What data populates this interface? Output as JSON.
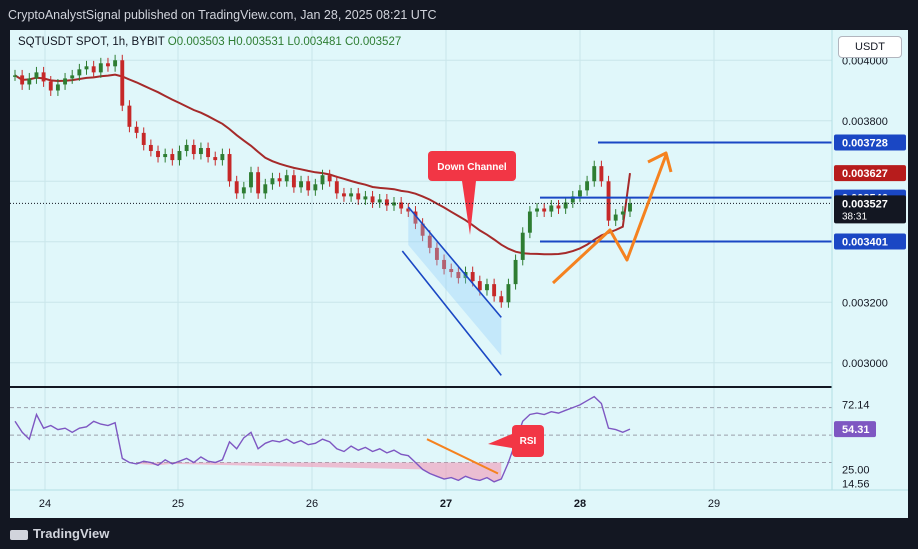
{
  "header": {
    "text": "CryptoAnalystSignal published on TradingView.com, Jan 28, 2025 08:21 UTC"
  },
  "legend": {
    "symbol": "SQTUSDT SPOT, 1h, BYBIT",
    "o_label": "O",
    "o": "0.003503",
    "h_label": "H",
    "h": "0.003531",
    "l_label": "L",
    "l": "0.003481",
    "c_label": "C",
    "c": "0.003527"
  },
  "currency_button": "USDT",
  "footer": {
    "brand": "TradingView"
  },
  "colors": {
    "up": "#2e7d32",
    "down": "#c62828",
    "ma": "#a52a2a",
    "levels": "#1a47c4",
    "arrow": "#f5821f",
    "rsi": "#7e57c2",
    "bg": "#e0f7fa"
  },
  "annotations": {
    "down_channel": "Down Channel",
    "rsi_note": "RSI"
  },
  "price_tags": [
    {
      "value": "0.003728",
      "color": "#1a47c4"
    },
    {
      "value": "0.003627",
      "color": "#b71c1c"
    },
    {
      "value": "0.003546",
      "color": "#1a47c4"
    },
    {
      "value": "0.003527",
      "color": "#131722",
      "countdown": "38:31"
    },
    {
      "value": "0.003401",
      "color": "#1a47c4"
    }
  ],
  "rsi_tags": [
    {
      "value": "54.31",
      "color": "#7e57c2"
    }
  ],
  "chart_data": [
    {
      "type": "candlestick",
      "title": "SQTUSDT SPOT, 1h, BYBIT",
      "x_tick_labels": [
        "24",
        "25",
        "26",
        "27",
        "28",
        "29"
      ],
      "y_tick_labels": [
        "0.004000",
        "0.003800",
        "0.003200",
        "0.003000"
      ],
      "ylim": [
        0.00292,
        0.0041
      ],
      "grid": true,
      "legend_position": "top-left",
      "key_levels": [
        0.003728,
        0.003546,
        0.003401
      ],
      "last_price": 0.003527,
      "ma_value": 0.003627,
      "trend_channel": {
        "label": "Down Channel",
        "start": 0.003515,
        "end": 0.00315
      },
      "projection": "up",
      "closes": [
        0.00395,
        0.00392,
        0.00394,
        0.00396,
        0.00393,
        0.0039,
        0.00392,
        0.00394,
        0.00395,
        0.00397,
        0.00398,
        0.00396,
        0.00399,
        0.00398,
        0.004,
        0.00385,
        0.00378,
        0.00376,
        0.00372,
        0.0037,
        0.00368,
        0.00369,
        0.00367,
        0.0037,
        0.00372,
        0.00369,
        0.00371,
        0.00368,
        0.00367,
        0.00369,
        0.0036,
        0.00356,
        0.00358,
        0.00363,
        0.00356,
        0.00359,
        0.00361,
        0.0036,
        0.00362,
        0.00358,
        0.0036,
        0.00357,
        0.00359,
        0.00362,
        0.0036,
        0.00356,
        0.00355,
        0.00356,
        0.00354,
        0.00355,
        0.00353,
        0.00354,
        0.00352,
        0.00353,
        0.00351,
        0.0035,
        0.00346,
        0.00342,
        0.00338,
        0.00334,
        0.00331,
        0.0033,
        0.00328,
        0.0033,
        0.00327,
        0.00324,
        0.00326,
        0.00322,
        0.0032,
        0.00326,
        0.00334,
        0.00343,
        0.0035,
        0.00351,
        0.0035,
        0.00352,
        0.00351,
        0.00353,
        0.00355,
        0.00357,
        0.0036,
        0.00365,
        0.0036,
        0.00347,
        0.00349,
        0.0035,
        0.003527
      ]
    },
    {
      "type": "line",
      "title": "RSI",
      "y_tick_labels": [
        "72.14",
        "25.00",
        "14.56"
      ],
      "ylim": [
        10,
        85
      ],
      "bands": [
        70,
        50,
        30
      ],
      "last_value": 54.31,
      "values": [
        60,
        52,
        47,
        65,
        55,
        57,
        54,
        55,
        52,
        55,
        56,
        60,
        58,
        57,
        59,
        33,
        30,
        29,
        31,
        30,
        28,
        32,
        29,
        31,
        33,
        30,
        34,
        31,
        30,
        32,
        45,
        40,
        48,
        52,
        40,
        44,
        46,
        45,
        47,
        44,
        46,
        43,
        44,
        47,
        45,
        40,
        38,
        42,
        39,
        41,
        38,
        40,
        37,
        39,
        36,
        35,
        30,
        25,
        22,
        20,
        18,
        19,
        17,
        20,
        18,
        17,
        19,
        16,
        18,
        30,
        45,
        60,
        65,
        66,
        65,
        67,
        66,
        68,
        70,
        72,
        75,
        78,
        73,
        55,
        54,
        52,
        54.31
      ]
    }
  ]
}
